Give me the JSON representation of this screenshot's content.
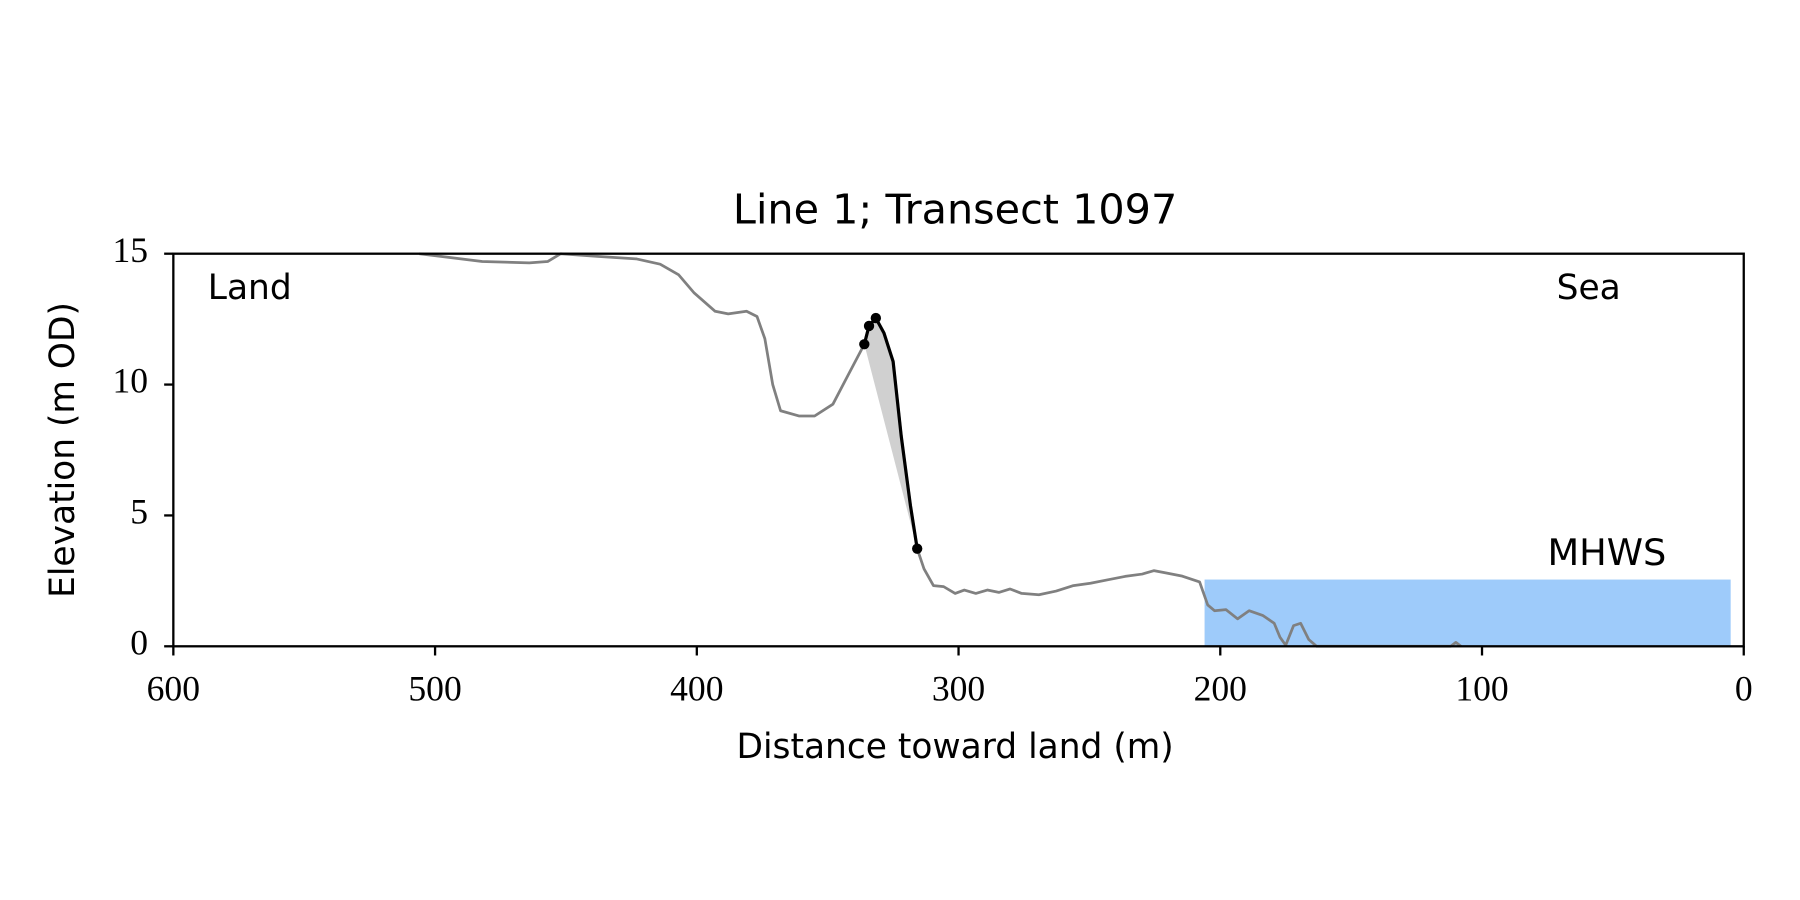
{
  "chart_data": {
    "type": "line",
    "title": "Line 1; Transect 1097",
    "xlabel": "Distance toward land (m)",
    "ylabel": "Elevation (m OD)",
    "xlim": [
      600,
      0
    ],
    "ylim": [
      0,
      15
    ],
    "xticks": [
      600,
      500,
      400,
      300,
      200,
      100,
      0
    ],
    "yticks": [
      0,
      5,
      10,
      15
    ],
    "annotations": [
      {
        "text": "Land"
      },
      {
        "text": "Sea"
      }
    ],
    "mhws": {
      "label": "MHWS",
      "level": 2.55,
      "xrange": [
        206,
        5
      ],
      "color": "#9ecbfa",
      "label_color": "#6a9bcc"
    },
    "series": [
      {
        "name": "profile",
        "color": "#808080",
        "x": [
          506,
          482,
          464,
          457,
          452,
          438,
          423,
          414,
          407,
          401,
          393,
          388,
          381,
          377,
          374,
          371,
          368,
          361,
          355,
          348,
          342,
          336,
          334.2,
          331.6,
          328.5,
          325,
          321.9,
          318.4,
          315.8,
          313.2,
          309.6,
          305.7,
          301.3,
          297.8,
          293.4,
          289,
          284.6,
          280.3,
          275.9,
          269.3,
          262.7,
          256.1,
          249.6,
          243,
          236.4,
          229.8,
          225.4,
          221.1,
          214.5,
          207.9,
          204.8,
          202.2,
          197.8,
          193.4,
          189,
          183.8,
          179.4,
          177.2,
          175,
          172,
          169.3,
          166.2,
          163.2,
          112,
          110,
          108
        ],
        "y": [
          15,
          14.7,
          14.65,
          14.7,
          15,
          14.9,
          14.8,
          14.6,
          14.2,
          13.5,
          12.8,
          12.7,
          12.8,
          12.6,
          11.75,
          10,
          9,
          8.8,
          8.8,
          9.25,
          10.4,
          11.54,
          12.24,
          12.54,
          11.97,
          10.88,
          8.03,
          5.39,
          3.73,
          2.96,
          2.32,
          2.28,
          2.02,
          2.15,
          2.02,
          2.15,
          2.06,
          2.19,
          2.02,
          1.97,
          2.11,
          2.32,
          2.41,
          2.54,
          2.67,
          2.76,
          2.89,
          2.81,
          2.68,
          2.46,
          1.58,
          1.36,
          1.4,
          1.05,
          1.36,
          1.18,
          0.88,
          0.35,
          0.04,
          0.79,
          0.88,
          0.26,
          0,
          0,
          0.15,
          0
        ]
      },
      {
        "name": "cliff",
        "color": "#000000",
        "fill": "#d0d0d0",
        "x": [
          336,
          334.2,
          331.6,
          328.5,
          325,
          321.9,
          318.4,
          315.8
        ],
        "y": [
          11.54,
          12.24,
          12.54,
          11.97,
          10.88,
          8.03,
          5.39,
          3.73
        ]
      },
      {
        "name": "cliff-points",
        "color": "#000000",
        "x": [
          336,
          334.2,
          331.6,
          315.8
        ],
        "y": [
          11.54,
          12.24,
          12.54,
          3.73
        ]
      }
    ]
  }
}
